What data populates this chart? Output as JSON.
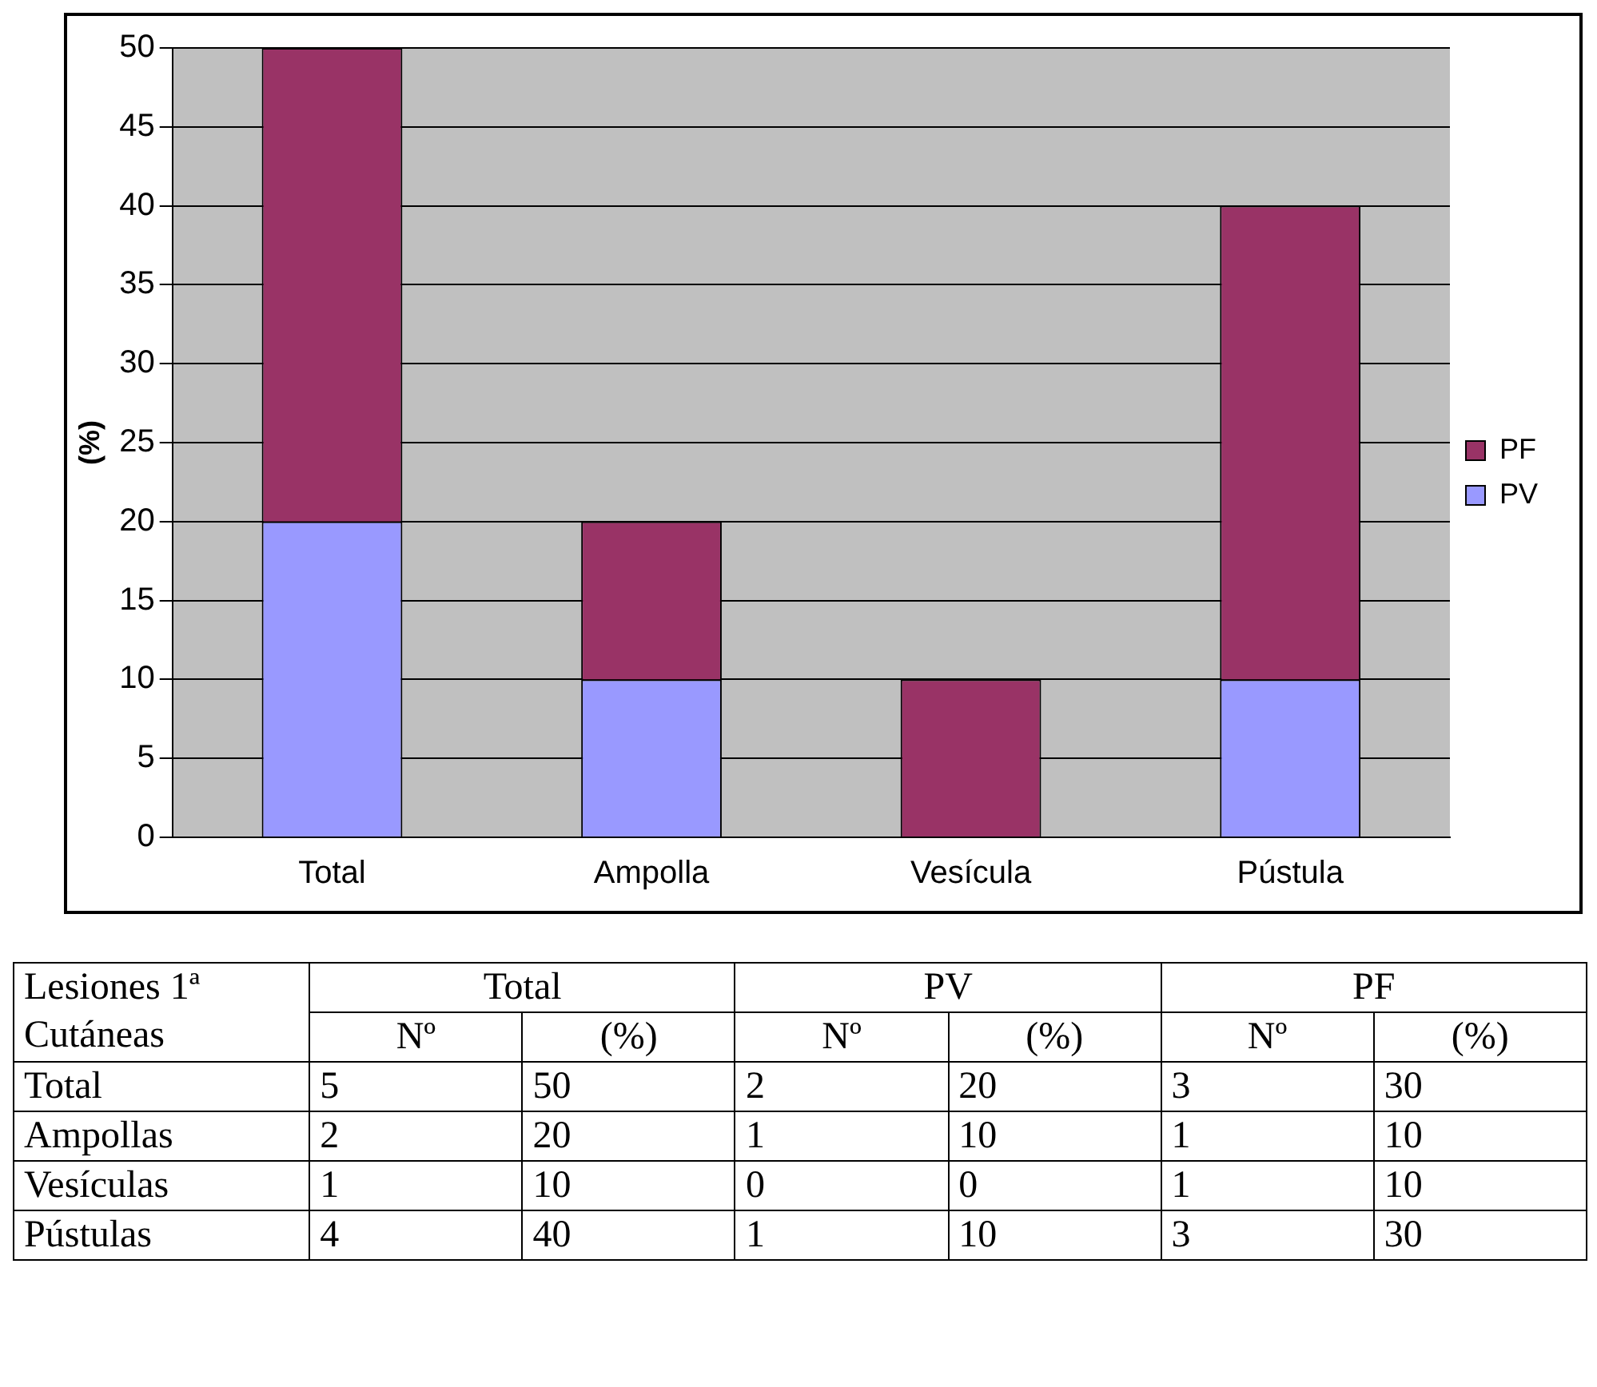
{
  "chart_data": {
    "type": "bar",
    "stacked": true,
    "ylabel": "(%)",
    "categories": [
      "Total",
      "Ampolla",
      "Vesícula",
      "Pústula"
    ],
    "series": [
      {
        "name": "PV",
        "color": "#9999ff",
        "values": [
          20,
          10,
          0,
          10
        ]
      },
      {
        "name": "PF",
        "color": "#993366",
        "values": [
          30,
          10,
          10,
          30
        ]
      }
    ],
    "ylim": [
      0,
      50
    ],
    "yticks": [
      0,
      5,
      10,
      15,
      20,
      25,
      30,
      35,
      40,
      45,
      50
    ],
    "grid": "y",
    "legend": "right",
    "annotations": [
      "Lesiones 1ª",
      "Cutáneas",
      "Total",
      "PV",
      "PF",
      "Nº",
      "(%)",
      "Total",
      "5",
      "50",
      "2",
      "20",
      "3",
      "30",
      "Ampollas",
      "2",
      "20",
      "1",
      "10",
      "1",
      "10",
      "Vesículas",
      "1",
      "10",
      "0",
      "0",
      "1",
      "10",
      "Pústulas",
      "4",
      "40",
      "1",
      "10",
      "3",
      "30"
    ]
  }
}
